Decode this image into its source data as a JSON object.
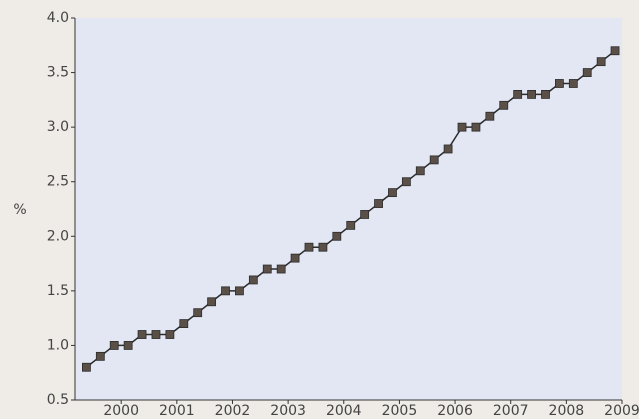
{
  "chart_data": {
    "type": "line",
    "ylabel": "%",
    "x": [
      1999.375,
      1999.625,
      1999.875,
      2000.125,
      2000.375,
      2000.625,
      2000.875,
      2001.125,
      2001.375,
      2001.625,
      2001.875,
      2002.125,
      2002.375,
      2002.625,
      2002.875,
      2003.125,
      2003.375,
      2003.625,
      2003.875,
      2004.125,
      2004.375,
      2004.625,
      2004.875,
      2005.125,
      2005.375,
      2005.625,
      2005.875,
      2006.125,
      2006.375,
      2006.625,
      2006.875,
      2007.125,
      2007.375,
      2007.625,
      2007.875,
      2008.125,
      2008.375,
      2008.625,
      2008.875
    ],
    "series": [
      {
        "color": "#5b5047",
        "values": [
          0.8,
          0.9,
          1.0,
          1.0,
          1.1,
          1.1,
          1.1,
          1.2,
          1.3,
          1.4,
          1.5,
          1.5,
          1.6,
          1.7,
          1.7,
          1.8,
          1.9,
          1.9,
          2.0,
          2.1,
          2.2,
          2.3,
          2.4,
          2.5,
          2.6,
          2.7,
          2.8,
          3.0,
          3.0,
          3.1,
          3.2,
          3.3,
          3.3,
          3.3,
          3.4,
          3.4,
          3.5,
          3.6,
          3.7
        ]
      }
    ],
    "xlim": [
      1999.17,
      2009
    ],
    "xticks": [
      2000,
      2001,
      2002,
      2003,
      2004,
      2005,
      2006,
      2007,
      2008,
      2009
    ],
    "ylim": [
      0.5,
      4.0
    ],
    "yticks": [
      0.5,
      {
        "value": 1.0,
        "label": "1.0"
      },
      1.5,
      {
        "value": 2.0,
        "label": "2.0"
      },
      2.5,
      {
        "value": 3.0,
        "label": "3.0"
      },
      3.5,
      {
        "value": 4.0,
        "label": "4.0"
      }
    ],
    "plot_background": "#e3e7f4",
    "grid": false
  }
}
